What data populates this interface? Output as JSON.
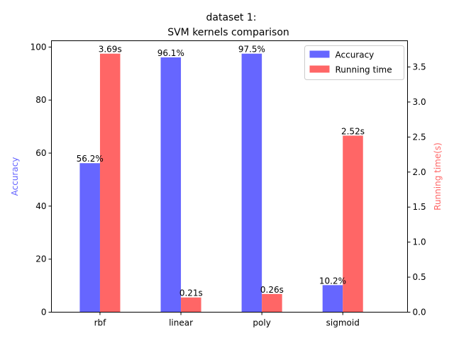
{
  "chart_data": {
    "type": "bar",
    "title_line1": "dataset 1:",
    "title_line2": "SVM kernels comparison",
    "categories": [
      "rbf",
      "linear",
      "poly",
      "sigmoid"
    ],
    "xlabel": "",
    "series": [
      {
        "name": "Accuracy",
        "axis": "left",
        "color": "#6666ff",
        "values": [
          56.2,
          96.1,
          97.5,
          10.2
        ],
        "labels": [
          "56.2%",
          "96.1%",
          "97.5%",
          "10.2%"
        ]
      },
      {
        "name": "Running time",
        "axis": "right",
        "color": "#ff6666",
        "values": [
          3.69,
          0.21,
          0.26,
          2.52
        ],
        "labels": [
          "3.69s",
          "0.21s",
          "0.26s",
          "2.52s"
        ]
      }
    ],
    "y_left": {
      "label": "Accuracy",
      "color": "#6666ff",
      "ylim": [
        0,
        102.375
      ],
      "ticks": [
        0,
        20,
        40,
        60,
        80,
        100
      ],
      "tick_labels": [
        "0",
        "20",
        "40",
        "60",
        "80",
        "100"
      ]
    },
    "y_right": {
      "label": "Running time(s)",
      "color": "#ff6666",
      "ylim": [
        0,
        3.8745
      ],
      "ticks": [
        0,
        0.5,
        1.0,
        1.5,
        2.0,
        2.5,
        3.0,
        3.5
      ],
      "tick_labels": [
        "0.0",
        "0.5",
        "1.0",
        "1.5",
        "2.0",
        "2.5",
        "3.0",
        "3.5"
      ]
    },
    "grid": false,
    "legend": {
      "placement": "top-right"
    }
  }
}
